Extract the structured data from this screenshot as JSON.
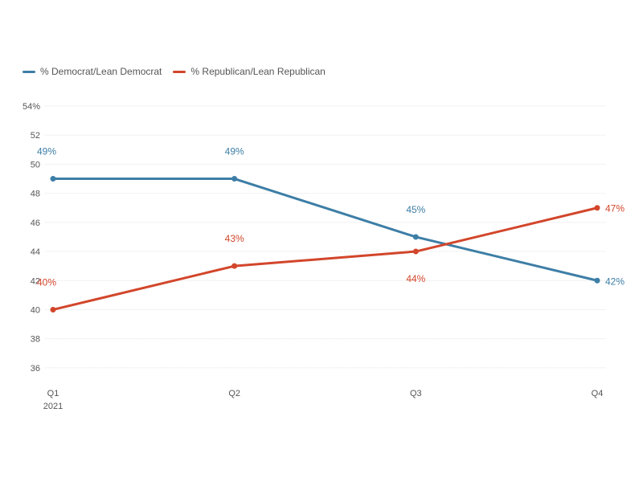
{
  "colors": {
    "democrat": "#3d7ea6",
    "republican": "#d2462b",
    "grid": "#e4e4e4",
    "axis_text": "#555555"
  },
  "legend": {
    "democrat_label": "% Democrat/Lean Democrat",
    "republican_label": "% Republican/Lean Republican"
  },
  "chart_data": {
    "type": "line",
    "categories": [
      "Q1",
      "Q2",
      "Q3",
      "Q4"
    ],
    "category_sublabels": [
      "2021",
      "",
      "",
      ""
    ],
    "y_tick_labels": [
      "36",
      "38",
      "40",
      "42",
      "44",
      "46",
      "48",
      "50",
      "52",
      "54%"
    ],
    "ylim": [
      35,
      54
    ],
    "grid": true,
    "legend_position": "top-left",
    "series": [
      {
        "name": "% Democrat/Lean Democrat",
        "color": "#3d7ea6",
        "values": [
          49,
          49,
          45,
          42
        ],
        "data_labels": [
          "49%",
          "49%",
          "45%",
          "42%"
        ],
        "label_positions": [
          "above",
          "above",
          "above",
          "right"
        ]
      },
      {
        "name": "% Republican/Lean Republican",
        "color": "#d2462b",
        "values": [
          40,
          43,
          44,
          47
        ],
        "data_labels": [
          "40%",
          "43%",
          "44%",
          "47%"
        ],
        "label_positions": [
          "above",
          "above",
          "below",
          "right"
        ]
      }
    ]
  }
}
